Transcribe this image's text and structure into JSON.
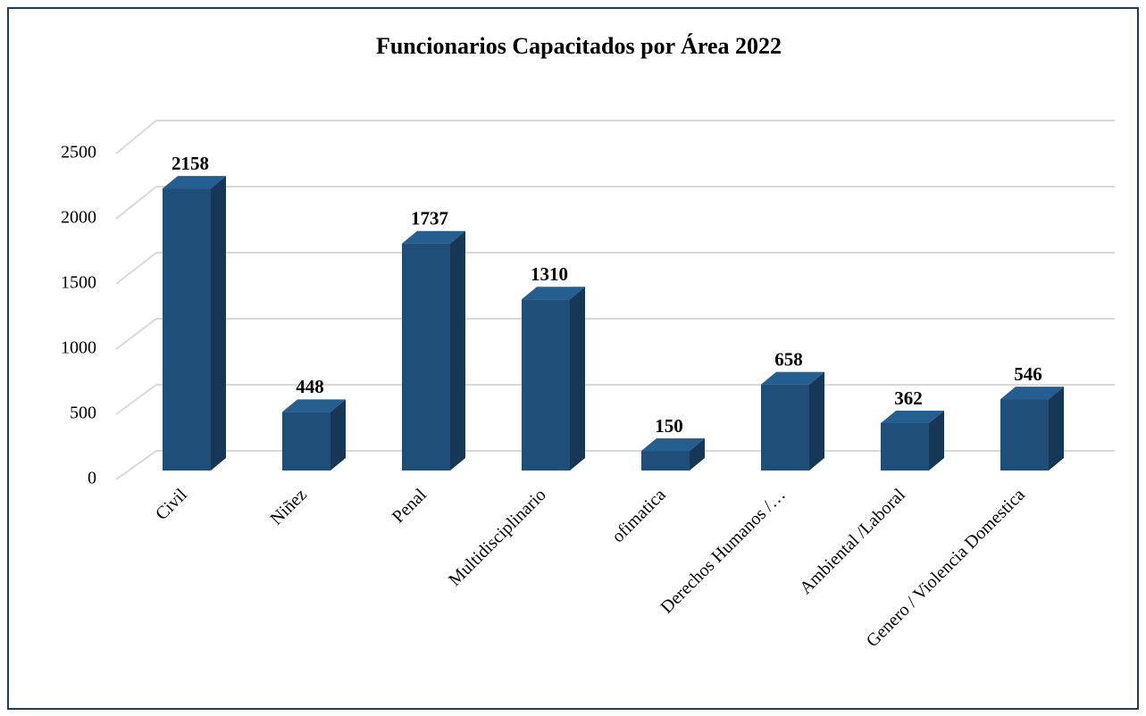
{
  "chart_data": {
    "type": "bar3d",
    "title": "Funcionarios  Capacitados por Área 2022",
    "categories": [
      "Civil",
      "Niñez",
      "Penal",
      "Multidisciplinario",
      "ofimatica",
      "Derechos Humanos /…",
      "Ambiental /Laboral",
      "Genero / Violencia Domestica"
    ],
    "values": [
      2158,
      448,
      1737,
      1310,
      150,
      658,
      362,
      546
    ],
    "color": "#1f4e79",
    "ylim": [
      0,
      2500
    ],
    "yticks": [
      0,
      500,
      1000,
      1500,
      2000,
      2500
    ],
    "grid": true
  }
}
